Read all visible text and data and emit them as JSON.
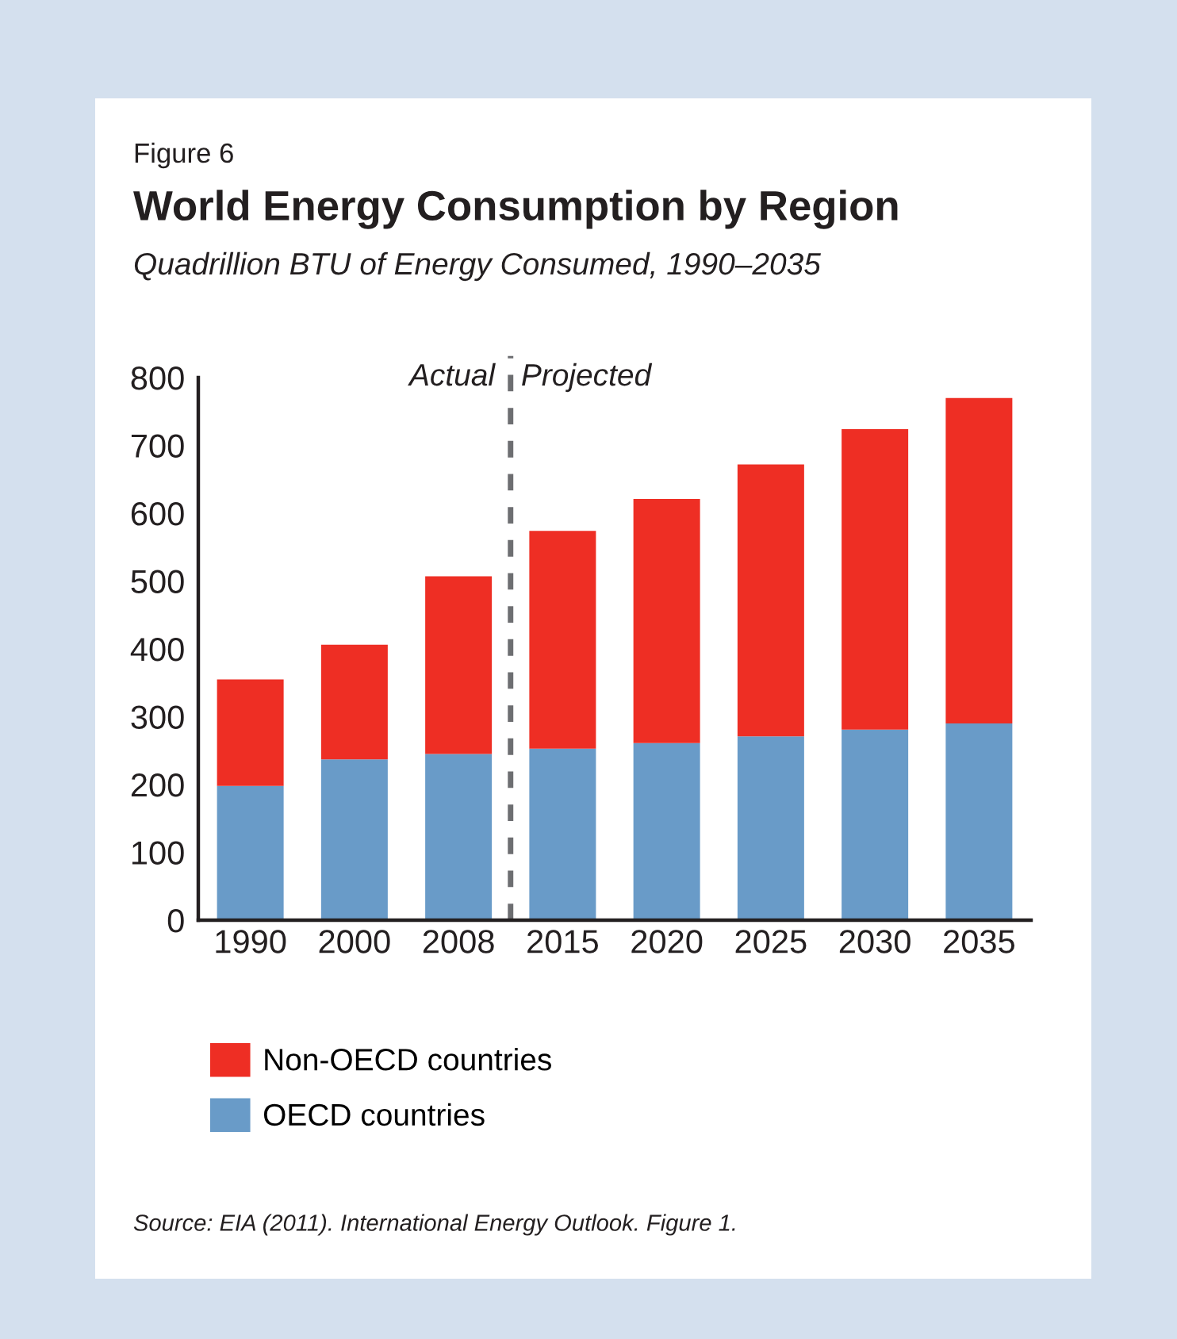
{
  "chart_data": {
    "type": "bar",
    "stacked": true,
    "title": "World Energy Consumption by Region",
    "subtitle": "Quadrillion BTU of Energy Consumed, 1990–2035",
    "categories": [
      "1990",
      "2000",
      "2008",
      "2015",
      "2020",
      "2025",
      "2030",
      "2035"
    ],
    "series": [
      {
        "name": "OECD countries",
        "color": "#699bc8",
        "values": [
          198,
          237,
          245,
          253,
          261,
          271,
          281,
          290
        ]
      },
      {
        "name": "Non-OECD countries",
        "color": "#ee2e24",
        "values": [
          157,
          169,
          262,
          321,
          360,
          401,
          443,
          480
        ]
      }
    ],
    "ylim": [
      0,
      800
    ],
    "yticks": [
      0,
      100,
      200,
      300,
      400,
      500,
      600,
      700,
      800
    ],
    "annotations": [
      "Figure 6",
      "Actual",
      "Projected",
      "Source: EIA (2011). International Energy Outlook. Figure 1."
    ],
    "legend": "bottom",
    "grid": false
  }
}
